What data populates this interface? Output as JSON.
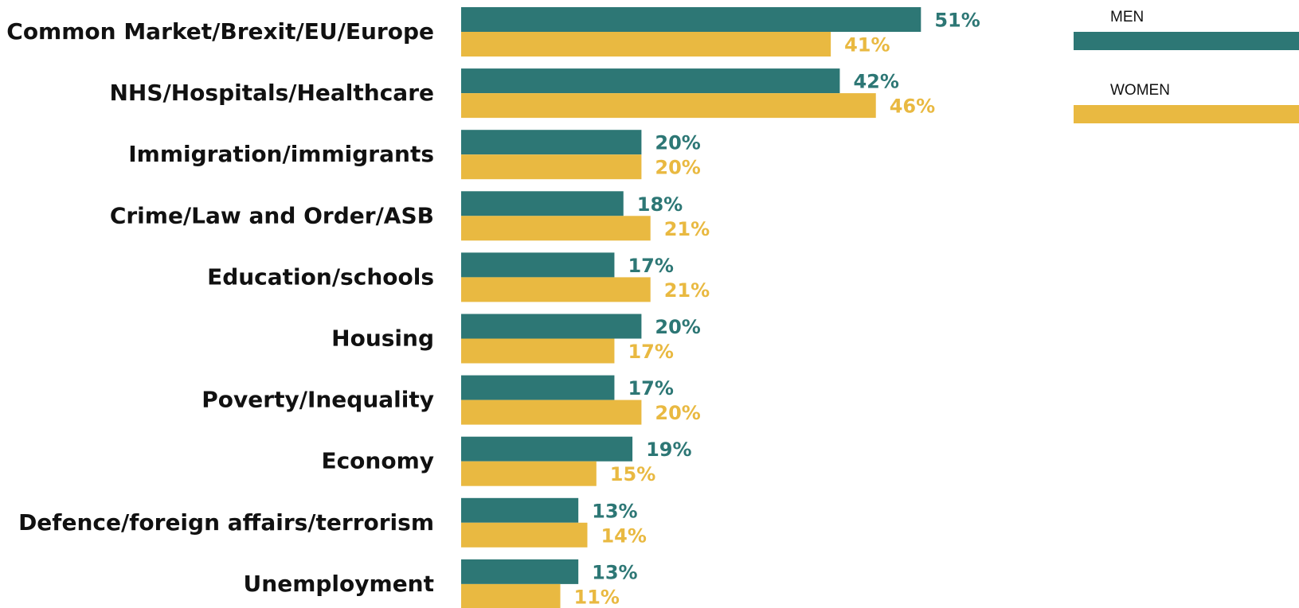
{
  "chart_data": {
    "type": "bar",
    "orientation": "horizontal",
    "categories": [
      "Common Market/Brexit/EU/Europe",
      "NHS/Hospitals/Healthcare",
      "Immigration/immigrants",
      "Crime/Law and Order/ASB",
      "Education/schools",
      "Housing",
      "Poverty/Inequality",
      "Economy",
      "Defence/foreign affairs/terrorism",
      "Unemployment"
    ],
    "series": [
      {
        "name": "MEN",
        "color": "#2d7775",
        "values": [
          51,
          42,
          20,
          18,
          17,
          20,
          17,
          19,
          13,
          13
        ]
      },
      {
        "name": "WOMEN",
        "color": "#e9b941",
        "values": [
          41,
          46,
          20,
          21,
          21,
          17,
          20,
          15,
          14,
          11
        ]
      }
    ],
    "value_suffix": "%",
    "legend_position": "top-right",
    "grid": false
  }
}
